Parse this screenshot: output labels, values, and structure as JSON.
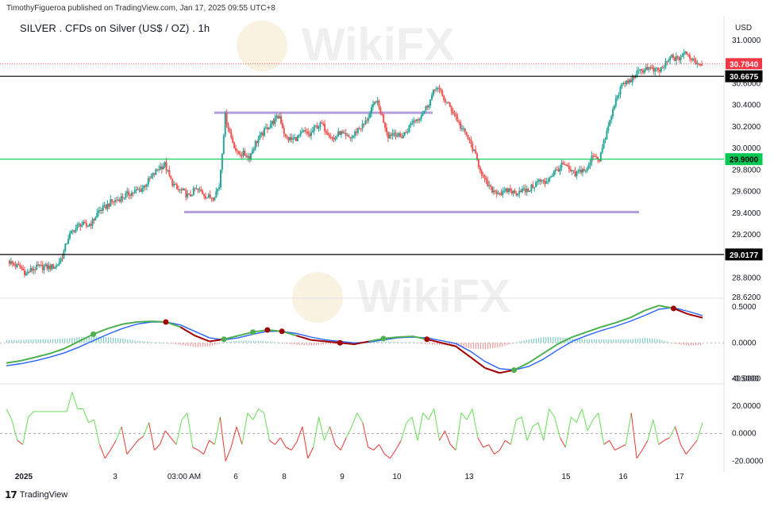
{
  "header": {
    "published_text": "TimothyFigueroa published on TradingView.com, Jan 17, 2025 09:55 UTC+8",
    "title": "SILVER . CFDs on Silver (US$ / OZ) . 1h",
    "currency": "USD"
  },
  "footer": {
    "brand": "TradingView"
  },
  "watermark": {
    "text": "WikiFX"
  },
  "colors": {
    "up": "#26a69a",
    "down": "#ef5350",
    "green_line": "#4caf50",
    "blue_line": "#2962ff",
    "dark_red": "#a00000",
    "range_line": "#b39ddb",
    "support_green": "#00c853",
    "price_tag": "#f23645"
  },
  "chart_data": [
    {
      "type": "candlestick",
      "name": "price",
      "title": "SILVER . CFDs on Silver (US$ / OZ) . 1h",
      "ylabel": "USD",
      "ylim": [
        28.62,
        31.08
      ],
      "yticks": [
        "31.0000",
        "30.8000",
        "30.6000",
        "30.4000",
        "30.2000",
        "30.0000",
        "29.8000",
        "29.6000",
        "29.4000",
        "29.2000",
        "29.0000",
        "28.8000",
        "28.6200"
      ],
      "x_ticks": [
        "2025",
        "3",
        "03:00 AM",
        "6",
        "8",
        "9",
        "10",
        "13",
        "15",
        "16",
        "17"
      ],
      "close_path": [
        28.96,
        28.92,
        28.9,
        28.84,
        28.88,
        28.9,
        28.9,
        28.9,
        28.91,
        29.0,
        29.18,
        29.25,
        29.3,
        29.28,
        29.32,
        29.42,
        29.45,
        29.5,
        29.52,
        29.55,
        29.58,
        29.6,
        29.62,
        29.68,
        29.75,
        29.82,
        29.85,
        29.7,
        29.62,
        29.6,
        29.55,
        29.62,
        29.6,
        29.55,
        29.55,
        29.65,
        30.3,
        30.1,
        29.95,
        29.95,
        29.92,
        30.05,
        30.12,
        30.2,
        30.25,
        30.3,
        30.1,
        30.08,
        30.1,
        30.15,
        30.12,
        30.2,
        30.22,
        30.15,
        30.08,
        30.15,
        30.1,
        30.1,
        30.18,
        30.22,
        30.32,
        30.45,
        30.3,
        30.12,
        30.15,
        30.1,
        30.15,
        30.25,
        30.28,
        30.35,
        30.45,
        30.58,
        30.48,
        30.4,
        30.32,
        30.2,
        30.12,
        30.0,
        29.85,
        29.7,
        29.62,
        29.6,
        29.58,
        29.62,
        29.58,
        29.62,
        29.6,
        29.65,
        29.7,
        29.68,
        29.75,
        29.8,
        29.85,
        29.8,
        29.75,
        29.8,
        29.8,
        29.95,
        29.9,
        30.1,
        30.3,
        30.5,
        30.6,
        30.62,
        30.68,
        30.72,
        30.75,
        30.72,
        30.72,
        30.78,
        30.85,
        30.82,
        30.88,
        30.85,
        30.8,
        30.78
      ],
      "current_price": "30.7840",
      "horizontal_levels": [
        {
          "label": "30.6675",
          "value": 30.6675,
          "color": "#000000"
        },
        {
          "label": "29.9000",
          "value": 29.9,
          "color": "#00c853"
        },
        {
          "label": "29.0177",
          "value": 29.0177,
          "color": "#000000"
        }
      ],
      "range_box": {
        "top": 30.33,
        "bottom": 29.41
      }
    },
    {
      "type": "line",
      "name": "oscillator",
      "ylim": [
        -0.55,
        0.6
      ],
      "yticks": [
        "0.5000",
        "0.0000",
        "-0.5000"
      ],
      "green_line": [
        -0.28,
        -0.25,
        -0.2,
        -0.15,
        -0.08,
        0.02,
        0.12,
        0.2,
        0.26,
        0.29,
        0.3,
        0.29,
        0.22,
        0.1,
        0.02,
        0.05,
        0.1,
        0.15,
        0.18,
        0.16,
        0.1,
        0.04,
        0.02,
        0.0,
        -0.02,
        0.02,
        0.06,
        0.08,
        0.09,
        0.05,
        0.0,
        -0.05,
        -0.2,
        -0.35,
        -0.42,
        -0.38,
        -0.28,
        -0.15,
        -0.02,
        0.08,
        0.15,
        0.22,
        0.28,
        0.35,
        0.45,
        0.52,
        0.48,
        0.4,
        0.35
      ],
      "blue_line": [
        -0.32,
        -0.29,
        -0.25,
        -0.2,
        -0.14,
        -0.06,
        0.03,
        0.12,
        0.2,
        0.26,
        0.29,
        0.29,
        0.25,
        0.16,
        0.07,
        0.04,
        0.07,
        0.12,
        0.16,
        0.16,
        0.13,
        0.08,
        0.04,
        0.02,
        0.0,
        0.01,
        0.04,
        0.07,
        0.08,
        0.07,
        0.03,
        -0.01,
        -0.12,
        -0.26,
        -0.36,
        -0.38,
        -0.33,
        -0.23,
        -0.1,
        0.02,
        0.1,
        0.17,
        0.23,
        0.3,
        0.38,
        0.47,
        0.49,
        0.44,
        0.38
      ],
      "histogram": [
        0.04,
        0.04,
        0.05,
        0.05,
        0.06,
        0.08,
        0.09,
        0.08,
        0.06,
        0.03,
        0.01,
        0.0,
        -0.03,
        -0.06,
        -0.05,
        0.01,
        0.03,
        0.03,
        0.02,
        0.0,
        -0.03,
        -0.04,
        -0.02,
        -0.02,
        -0.02,
        0.01,
        0.02,
        0.01,
        0.01,
        -0.02,
        -0.03,
        -0.04,
        -0.08,
        -0.09,
        -0.06,
        0.0,
        0.05,
        0.08,
        0.08,
        0.06,
        0.05,
        0.05,
        0.05,
        0.05,
        0.07,
        0.05,
        -0.01,
        -0.04,
        -0.03
      ],
      "cross_up": [
        6,
        15,
        17,
        26,
        35
      ],
      "cross_down": [
        11,
        18,
        19,
        23,
        29,
        46
      ]
    },
    {
      "type": "line",
      "name": "momentum",
      "ylim": [
        -25,
        35
      ],
      "yticks": [
        "40.0000",
        "20.0000",
        "0.0000",
        "-20.0000"
      ],
      "values": [
        18,
        10,
        -5,
        -8,
        12,
        16,
        16,
        16,
        16,
        16,
        16,
        16,
        30,
        18,
        18,
        8,
        10,
        -8,
        -18,
        -12,
        -5,
        5,
        -15,
        -10,
        -5,
        -2,
        8,
        -12,
        -8,
        2,
        -3,
        -8,
        10,
        15,
        -10,
        -12,
        -15,
        -5,
        -8,
        12,
        -20,
        -10,
        5,
        -8,
        15,
        10,
        18,
        15,
        -5,
        -8,
        -3,
        -10,
        -12,
        -6,
        5,
        -18,
        -10,
        12,
        -5,
        5,
        -8,
        -12,
        -3,
        5,
        15,
        8,
        -10,
        -12,
        -8,
        -15,
        -18,
        -12,
        -5,
        8,
        12,
        -5,
        15,
        10,
        18,
        -5,
        2,
        -8,
        -12,
        15,
        10,
        18,
        -3,
        -10,
        -8,
        -15,
        -12,
        -5,
        -8,
        10,
        12,
        -5,
        5,
        8,
        -5,
        18,
        12,
        -3,
        -10,
        12,
        8,
        18,
        2,
        10,
        15,
        -8,
        -5,
        -12,
        -10,
        -8,
        15,
        -18,
        -12,
        -5,
        10,
        -8,
        -5,
        -3,
        5,
        -8,
        -15,
        -10,
        -5,
        8
      ]
    }
  ]
}
